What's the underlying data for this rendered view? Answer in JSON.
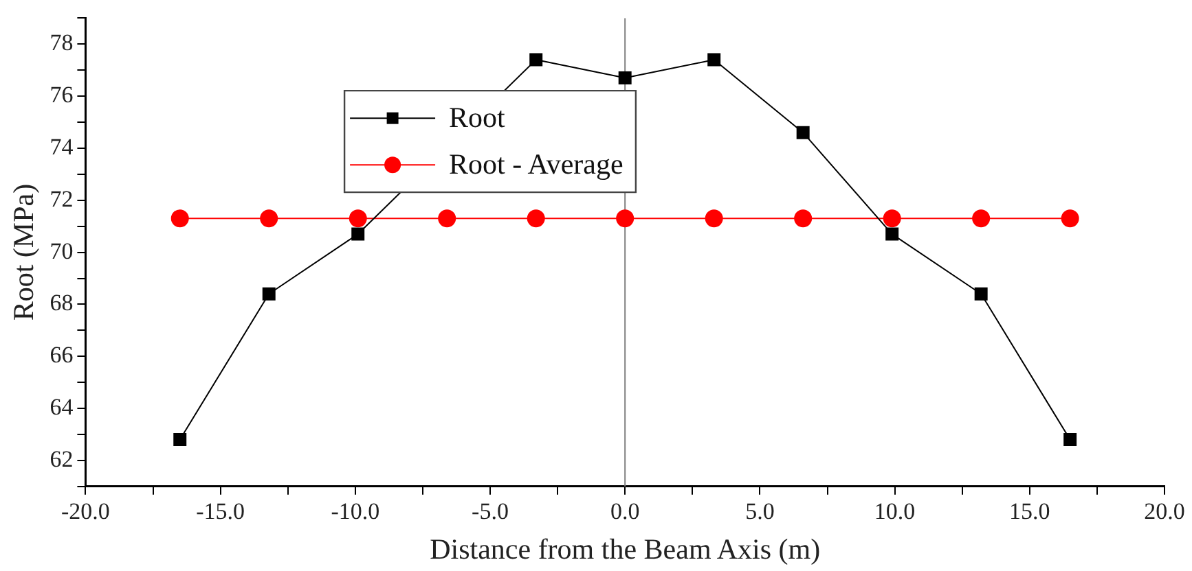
{
  "chart_data": {
    "type": "line",
    "xlabel": "Distance from the Beam Axis (m)",
    "ylabel": "Root (MPa)",
    "x": [
      -16.5,
      -13.2,
      -9.9,
      -6.6,
      -3.3,
      0,
      3.3,
      6.6,
      9.9,
      13.2,
      16.5
    ],
    "series": [
      {
        "name": "Root",
        "color": "#000000",
        "marker": "square",
        "values": [
          62.8,
          68.4,
          70.7,
          null,
          77.4,
          76.7,
          77.4,
          74.6,
          70.7,
          68.4,
          62.8
        ]
      },
      {
        "name": "Root - Average",
        "color": "#ff0000",
        "marker": "circle",
        "values": [
          71.3,
          71.3,
          71.3,
          71.3,
          71.3,
          71.3,
          71.3,
          71.3,
          71.3,
          71.3,
          71.3
        ]
      }
    ],
    "xlim": [
      -20,
      20
    ],
    "xticks": [
      {
        "value": -20,
        "label": "-20.0"
      },
      {
        "value": -17.5,
        "label": null
      },
      {
        "value": -15,
        "label": "-15.0"
      },
      {
        "value": -12.5,
        "label": null
      },
      {
        "value": -10,
        "label": "-10.0"
      },
      {
        "value": -7.5,
        "label": null
      },
      {
        "value": -5,
        "label": "-5.0"
      },
      {
        "value": -2.5,
        "label": null
      },
      {
        "value": 0,
        "label": "0.0"
      },
      {
        "value": 2.5,
        "label": null
      },
      {
        "value": 5,
        "label": "5.0"
      },
      {
        "value": 7.5,
        "label": null
      },
      {
        "value": 10,
        "label": "10.0"
      },
      {
        "value": 12.5,
        "label": null
      },
      {
        "value": 15,
        "label": "15.0"
      },
      {
        "value": 17.5,
        "label": null
      },
      {
        "value": 20,
        "label": "20.0"
      }
    ],
    "ylim": [
      61,
      79
    ],
    "yticks": [
      {
        "value": 61,
        "label": null
      },
      62,
      {
        "value": 63,
        "label": null
      },
      64,
      {
        "value": 65,
        "label": null
      },
      66,
      {
        "value": 67,
        "label": null
      },
      68,
      {
        "value": 69,
        "label": null
      },
      70,
      {
        "value": 71,
        "label": null
      },
      72,
      {
        "value": 73,
        "label": null
      },
      74,
      {
        "value": 75,
        "label": null
      },
      76,
      {
        "value": 77,
        "label": null
      },
      78,
      {
        "value": 79,
        "label": null
      }
    ],
    "ref_lines": [
      {
        "axis": "x",
        "value": 0,
        "color": "#808080"
      }
    ],
    "grid": false,
    "legend": "top left",
    "line_style": "solid"
  }
}
